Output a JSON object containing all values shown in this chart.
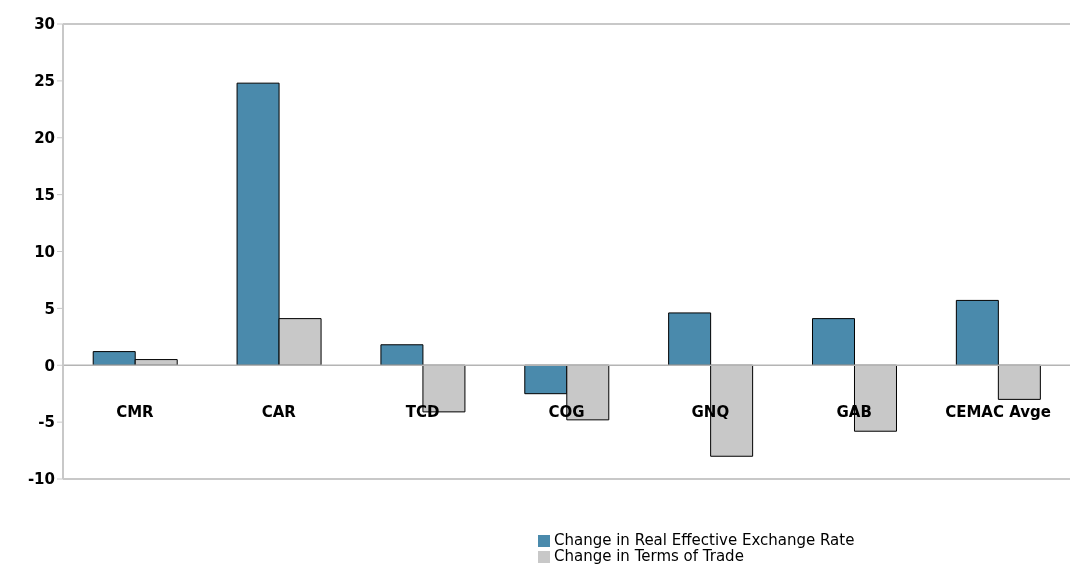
{
  "chart_data": {
    "type": "bar",
    "categories": [
      "CMR",
      "CAR",
      "TCD",
      "COG",
      "GNQ",
      "GAB",
      "CEMAC Avge"
    ],
    "series": [
      {
        "name": "Change in Real Effective Exchange Rate",
        "color": "#4a8aac",
        "values": [
          1.2,
          24.8,
          1.8,
          -2.5,
          4.6,
          4.1,
          5.7
        ]
      },
      {
        "name": "Change in Terms of Trade",
        "color": "#c8c8c8",
        "values": [
          0.5,
          4.1,
          -4.1,
          -4.8,
          -8.0,
          -5.8,
          -3.0
        ]
      }
    ],
    "ylim": [
      -10,
      30
    ],
    "yticks": [
      -10,
      -5,
      0,
      5,
      10,
      15,
      20,
      25,
      30
    ],
    "legend": "bottom"
  }
}
